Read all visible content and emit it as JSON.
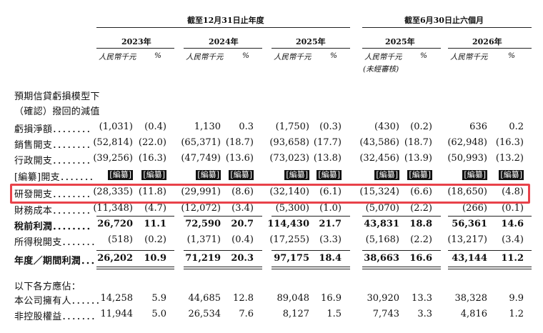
{
  "header": {
    "group1": "截至12月31日止年度",
    "group2": "截至6月30日止六個月",
    "years": [
      "2023年",
      "2024年",
      "2025年",
      "2025年",
      "2026年"
    ],
    "sub_rmb": "人民幣千元",
    "sub_pct": "%",
    "unaudited": "(未經審核)"
  },
  "rows": [
    {
      "label": "預期信貸虧損模型下"
    },
    {
      "label": "（確認）撥回的減值"
    },
    {
      "label": "虧損淨額．．．．．．．．",
      "values": [
        "(1,031)",
        "(0.4)",
        "1,130",
        "0.3",
        "(1,750)",
        "(0.3)",
        "(430)",
        "(0.2)",
        "636",
        "0.2"
      ]
    },
    {
      "label": "銷售開支．．．．．．．．",
      "values": [
        "(52,814)",
        "(22.0)",
        "(65,371)",
        "(18.7)",
        "(93,658)",
        "(17.7)",
        "(43,586)",
        "(18.7)",
        "(62,948)",
        "(16.3)"
      ]
    },
    {
      "label": "行政開支．．．．．．．．",
      "values": [
        "(39,256)",
        "(16.3)",
        "(47,749)",
        "(13.6)",
        "(73,023)",
        "(13.8)",
        "(32,456)",
        "(13.9)",
        "(50,993)",
        "(13.2)"
      ]
    },
    {
      "label": "[編纂]開支．．．．．．．",
      "redacted": true,
      "values": [
        "[編纂]",
        "[編纂]",
        "[編纂]",
        "[編纂]",
        "[編纂]",
        "[編纂]",
        "[編纂]",
        "[編纂]",
        "[編纂]",
        "[編纂]"
      ]
    },
    {
      "label": "研發開支．．．．．．．．",
      "values": [
        "(28,335)",
        "(11.8)",
        "(29,991)",
        "(8.6)",
        "(32,140)",
        "(6.1)",
        "(15,324)",
        "(6.6)",
        "(18,650)",
        "(4.8)"
      ]
    },
    {
      "label": "財務成本．．．．．．．．",
      "values": [
        "(11,348)",
        "(4.7)",
        "(12,072)",
        "(3.4)",
        "(5,300)",
        "(1.0)",
        "(5,070)",
        "(2.2)",
        "(266)",
        "(0.1)"
      ]
    },
    {
      "label": "稅前利潤．．．．．．．．",
      "bold": true,
      "values": [
        "26,720",
        "11.1",
        "72,590",
        "20.7",
        "114,430",
        "21.7",
        "43,831",
        "18.8",
        "56,361",
        "14.6"
      ]
    },
    {
      "label": "所得稅開支．．．．．．．",
      "values": [
        "(518)",
        "(0.2)",
        "(1,371)",
        "(0.4)",
        "(17,255)",
        "(3.3)",
        "(5,168)",
        "(2.2)",
        "(13,217)",
        "(3.4)"
      ]
    },
    {
      "label": "年度／期間利潤．．．",
      "bold": true,
      "values": [
        "26,202",
        "10.9",
        "71,219",
        "20.3",
        "97,175",
        "18.4",
        "38,663",
        "16.6",
        "43,144",
        "11.2"
      ]
    },
    {
      "label": "以下各方應佔："
    },
    {
      "label": "本公司擁有人．．．．．．",
      "values": [
        "14,258",
        "5.9",
        "44,685",
        "12.8",
        "89,048",
        "16.9",
        "30,920",
        "13.3",
        "38,328",
        "9.9"
      ]
    },
    {
      "label": "非控股權益．．．．．．．",
      "values": [
        "11,944",
        "5.0",
        "26,534",
        "7.6",
        "8,127",
        "1.5",
        "7,743",
        "3.3",
        "4,816",
        "1.2"
      ]
    }
  ],
  "highlight_row": "研發開支",
  "colors": {
    "highlight": "#e8424a",
    "text": "#111111"
  }
}
